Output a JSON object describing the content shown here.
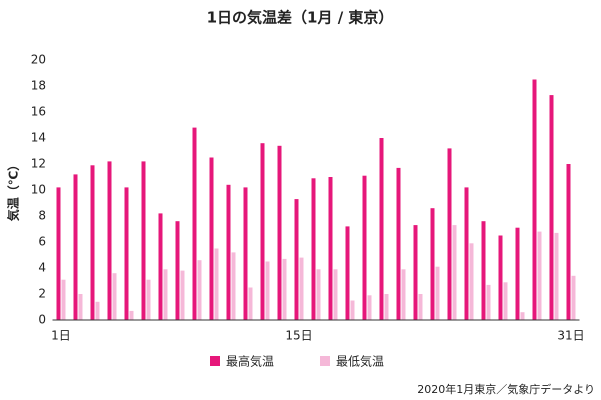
{
  "chart_data": {
    "type": "bar",
    "title": "1日の気温差（1月 / 東京）",
    "y_label": "気温（℃）",
    "source": "2020年1月東京／気象庁データより",
    "categories": [
      "1日",
      null,
      null,
      null,
      null,
      null,
      null,
      null,
      null,
      null,
      null,
      null,
      null,
      null,
      "15日",
      null,
      null,
      null,
      null,
      null,
      null,
      null,
      null,
      null,
      null,
      null,
      null,
      null,
      null,
      null,
      "31日"
    ],
    "series": [
      {
        "name": "最高気温",
        "color": "#e6177a",
        "values": [
          10.2,
          11.2,
          11.9,
          12.2,
          10.2,
          12.2,
          8.2,
          7.6,
          14.8,
          12.5,
          10.4,
          10.2,
          13.6,
          13.4,
          9.3,
          10.9,
          11.0,
          7.2,
          11.1,
          14.0,
          11.7,
          7.3,
          8.6,
          13.2,
          10.2,
          7.6,
          6.5,
          7.1,
          18.5,
          17.3,
          12.0
        ]
      },
      {
        "name": "最低気温",
        "color": "#f5b8d8",
        "values": [
          3.1,
          2.0,
          1.4,
          3.6,
          0.7,
          3.1,
          3.9,
          3.8,
          4.6,
          5.5,
          5.2,
          2.5,
          4.5,
          4.7,
          4.8,
          3.9,
          3.9,
          1.5,
          1.9,
          2.0,
          3.9,
          2.0,
          4.1,
          7.3,
          5.9,
          2.7,
          2.9,
          0.6,
          6.8,
          6.7,
          3.4
        ]
      }
    ],
    "ylim": [
      0,
      20
    ],
    "yticks": [
      0,
      2,
      4,
      6,
      8,
      10,
      12,
      14,
      16,
      18,
      20
    ],
    "grid": false
  }
}
